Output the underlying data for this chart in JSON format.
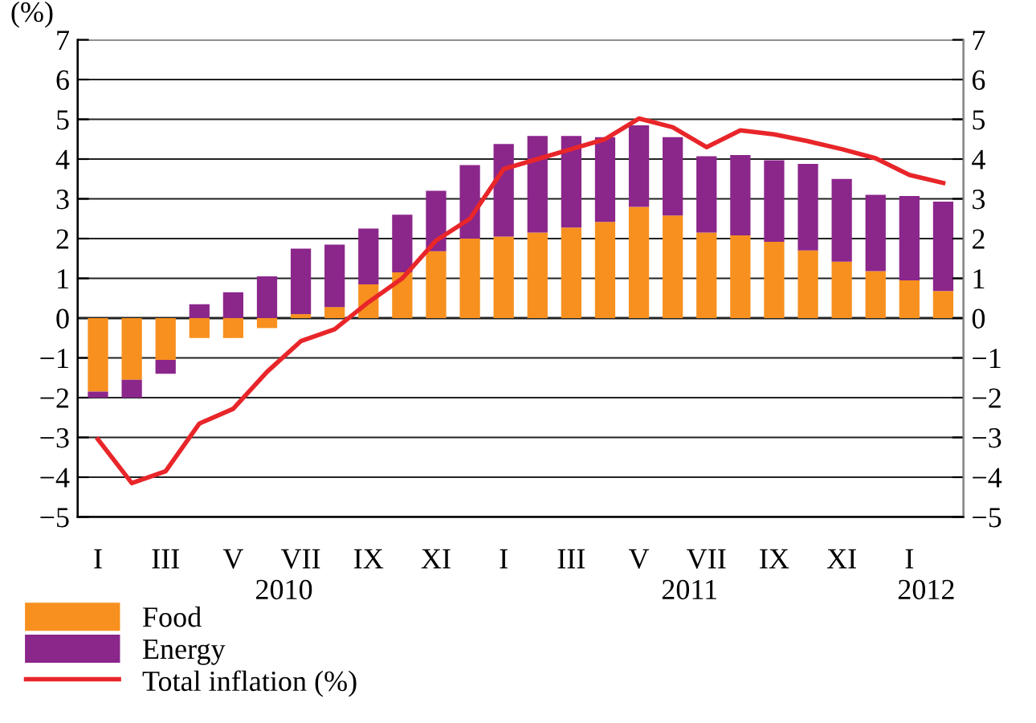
{
  "chart_data": {
    "type": "bar",
    "stacked": true,
    "ylabel": "(%)",
    "categories": [
      "I",
      null,
      "III",
      null,
      "V",
      null,
      "VII",
      null,
      "IX",
      null,
      "XI",
      null,
      "I",
      null,
      "III",
      null,
      "V",
      null,
      "VII",
      null,
      "IX",
      null,
      "XI",
      null,
      "I",
      null
    ],
    "series": [
      {
        "name": "Food",
        "color": "#f7901e",
        "values": [
          -1.85,
          -1.55,
          -1.05,
          -0.5,
          -0.5,
          -0.25,
          0.1,
          0.28,
          0.85,
          1.15,
          1.68,
          2.0,
          2.05,
          2.15,
          2.28,
          2.42,
          2.8,
          2.58,
          2.15,
          2.08,
          1.92,
          1.7,
          1.42,
          1.18,
          0.95,
          0.68
        ]
      },
      {
        "name": "Energy",
        "color": "#8b268b",
        "values": [
          -0.15,
          -0.45,
          -0.35,
          0.35,
          0.65,
          1.05,
          1.65,
          1.57,
          1.4,
          1.45,
          1.52,
          1.85,
          2.33,
          2.43,
          2.3,
          2.13,
          2.05,
          1.97,
          1.92,
          2.02,
          2.05,
          2.18,
          2.08,
          1.92,
          2.12,
          2.25
        ]
      },
      {
        "name": "Total inflation (%)",
        "type": "line",
        "color": "#e8262a",
        "values": [
          -3.05,
          -4.15,
          -3.85,
          -2.65,
          -2.28,
          -1.35,
          -0.58,
          -0.28,
          0.4,
          1.0,
          1.95,
          2.5,
          3.75,
          4.0,
          4.25,
          4.5,
          5.02,
          4.8,
          4.3,
          4.72,
          4.62,
          4.45,
          4.25,
          4.02,
          3.6,
          3.4
        ]
      }
    ],
    "ylim": [
      -5,
      7
    ],
    "yticks": [
      -5,
      -4,
      -3,
      -2,
      -1,
      0,
      1,
      2,
      3,
      4,
      5,
      6,
      7
    ],
    "y2lim": [
      -5,
      7
    ],
    "y2ticks": [
      -5,
      -4,
      -3,
      -2,
      -1,
      0,
      1,
      2,
      3,
      4,
      5,
      6,
      7
    ],
    "annotations": [
      "2010",
      "2011",
      "2012"
    ],
    "grid": "y",
    "legend": "bottom left",
    "marker": "none",
    "line_style": "solid"
  }
}
